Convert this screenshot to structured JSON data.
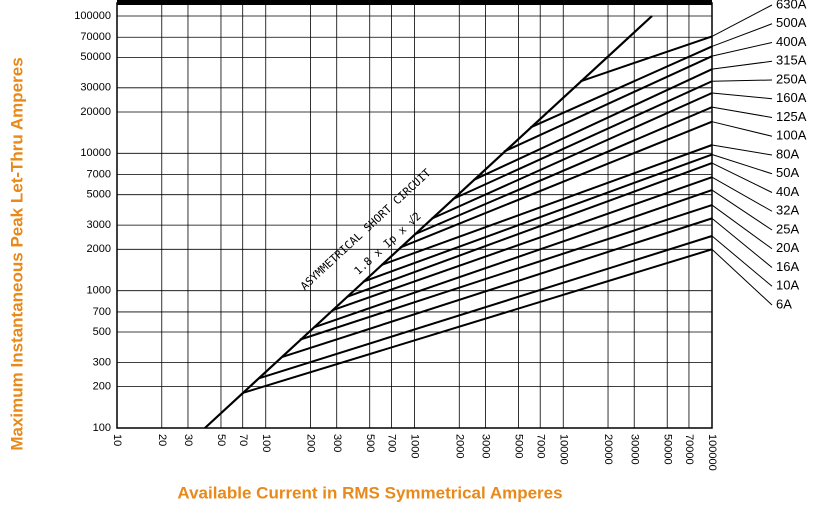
{
  "chart_data": {
    "type": "line",
    "xlabel": "Available Current in RMS Symmetrical Amperes",
    "ylabel": "Maximum Instantaneous Peak Let-Thru Amperes",
    "annotations": [
      "ASYMMETRICAL SHORT CIRCUIT",
      "1.8 x Ip x √2"
    ],
    "xscale": "log",
    "yscale": "log",
    "grid": true,
    "xlim": [
      10,
      100000
    ],
    "ylim": [
      100,
      100000
    ],
    "xticks": [
      10,
      20,
      30,
      50,
      70,
      100,
      200,
      300,
      500,
      700,
      1000,
      2000,
      3000,
      5000,
      7000,
      10000,
      20000,
      30000,
      50000,
      70000,
      100000
    ],
    "yticks": [
      100,
      200,
      300,
      500,
      700,
      1000,
      2000,
      3000,
      5000,
      7000,
      10000,
      20000,
      30000,
      50000,
      70000,
      100000
    ],
    "diagonal": {
      "x": [
        39,
        39500
      ],
      "values": [
        100,
        100000
      ]
    },
    "series": [
      {
        "name": "630A",
        "color": "#000000",
        "x": [
          13000,
          100000
        ],
        "values": [
          33400,
          71000
        ]
      },
      {
        "name": "500A",
        "color": "#000000",
        "x": [
          6000,
          100000
        ],
        "values": [
          15400,
          60000
        ]
      },
      {
        "name": "400A",
        "color": "#000000",
        "x": [
          4000,
          100000
        ],
        "values": [
          10300,
          51000
        ]
      },
      {
        "name": "315A",
        "color": "#000000",
        "x": [
          2500,
          100000
        ],
        "values": [
          6400,
          41000
        ]
      },
      {
        "name": "250A",
        "color": "#000000",
        "x": [
          1800,
          100000
        ],
        "values": [
          4630,
          33500
        ]
      },
      {
        "name": "160A",
        "color": "#000000",
        "x": [
          1300,
          100000
        ],
        "values": [
          3340,
          27500
        ]
      },
      {
        "name": "125A",
        "color": "#000000",
        "x": [
          1000,
          100000
        ],
        "values": [
          2570,
          21700
        ]
      },
      {
        "name": "100A",
        "color": "#000000",
        "x": [
          800,
          100000
        ],
        "values": [
          2060,
          17000
        ]
      },
      {
        "name": "80A",
        "color": "#000000",
        "x": [
          600,
          100000
        ],
        "values": [
          1540,
          11500
        ]
      },
      {
        "name": "50A",
        "color": "#000000",
        "x": [
          450,
          100000
        ],
        "values": [
          1160,
          9800
        ]
      },
      {
        "name": "40A",
        "color": "#000000",
        "x": [
          350,
          100000
        ],
        "values": [
          900,
          8500
        ]
      },
      {
        "name": "32A",
        "color": "#000000",
        "x": [
          280,
          100000
        ],
        "values": [
          720,
          6700
        ]
      },
      {
        "name": "25A",
        "color": "#000000",
        "x": [
          210,
          100000
        ],
        "values": [
          540,
          5400
        ]
      },
      {
        "name": "20A",
        "color": "#000000",
        "x": [
          170,
          100000
        ],
        "values": [
          440,
          4200
        ]
      },
      {
        "name": "16A",
        "color": "#000000",
        "x": [
          130,
          100000
        ],
        "values": [
          330,
          3360
        ]
      },
      {
        "name": "10A",
        "color": "#000000",
        "x": [
          90,
          100000
        ],
        "values": [
          230,
          2500
        ]
      },
      {
        "name": "6A",
        "color": "#000000",
        "x": [
          70,
          100000
        ],
        "values": [
          180,
          2000
        ]
      }
    ]
  }
}
